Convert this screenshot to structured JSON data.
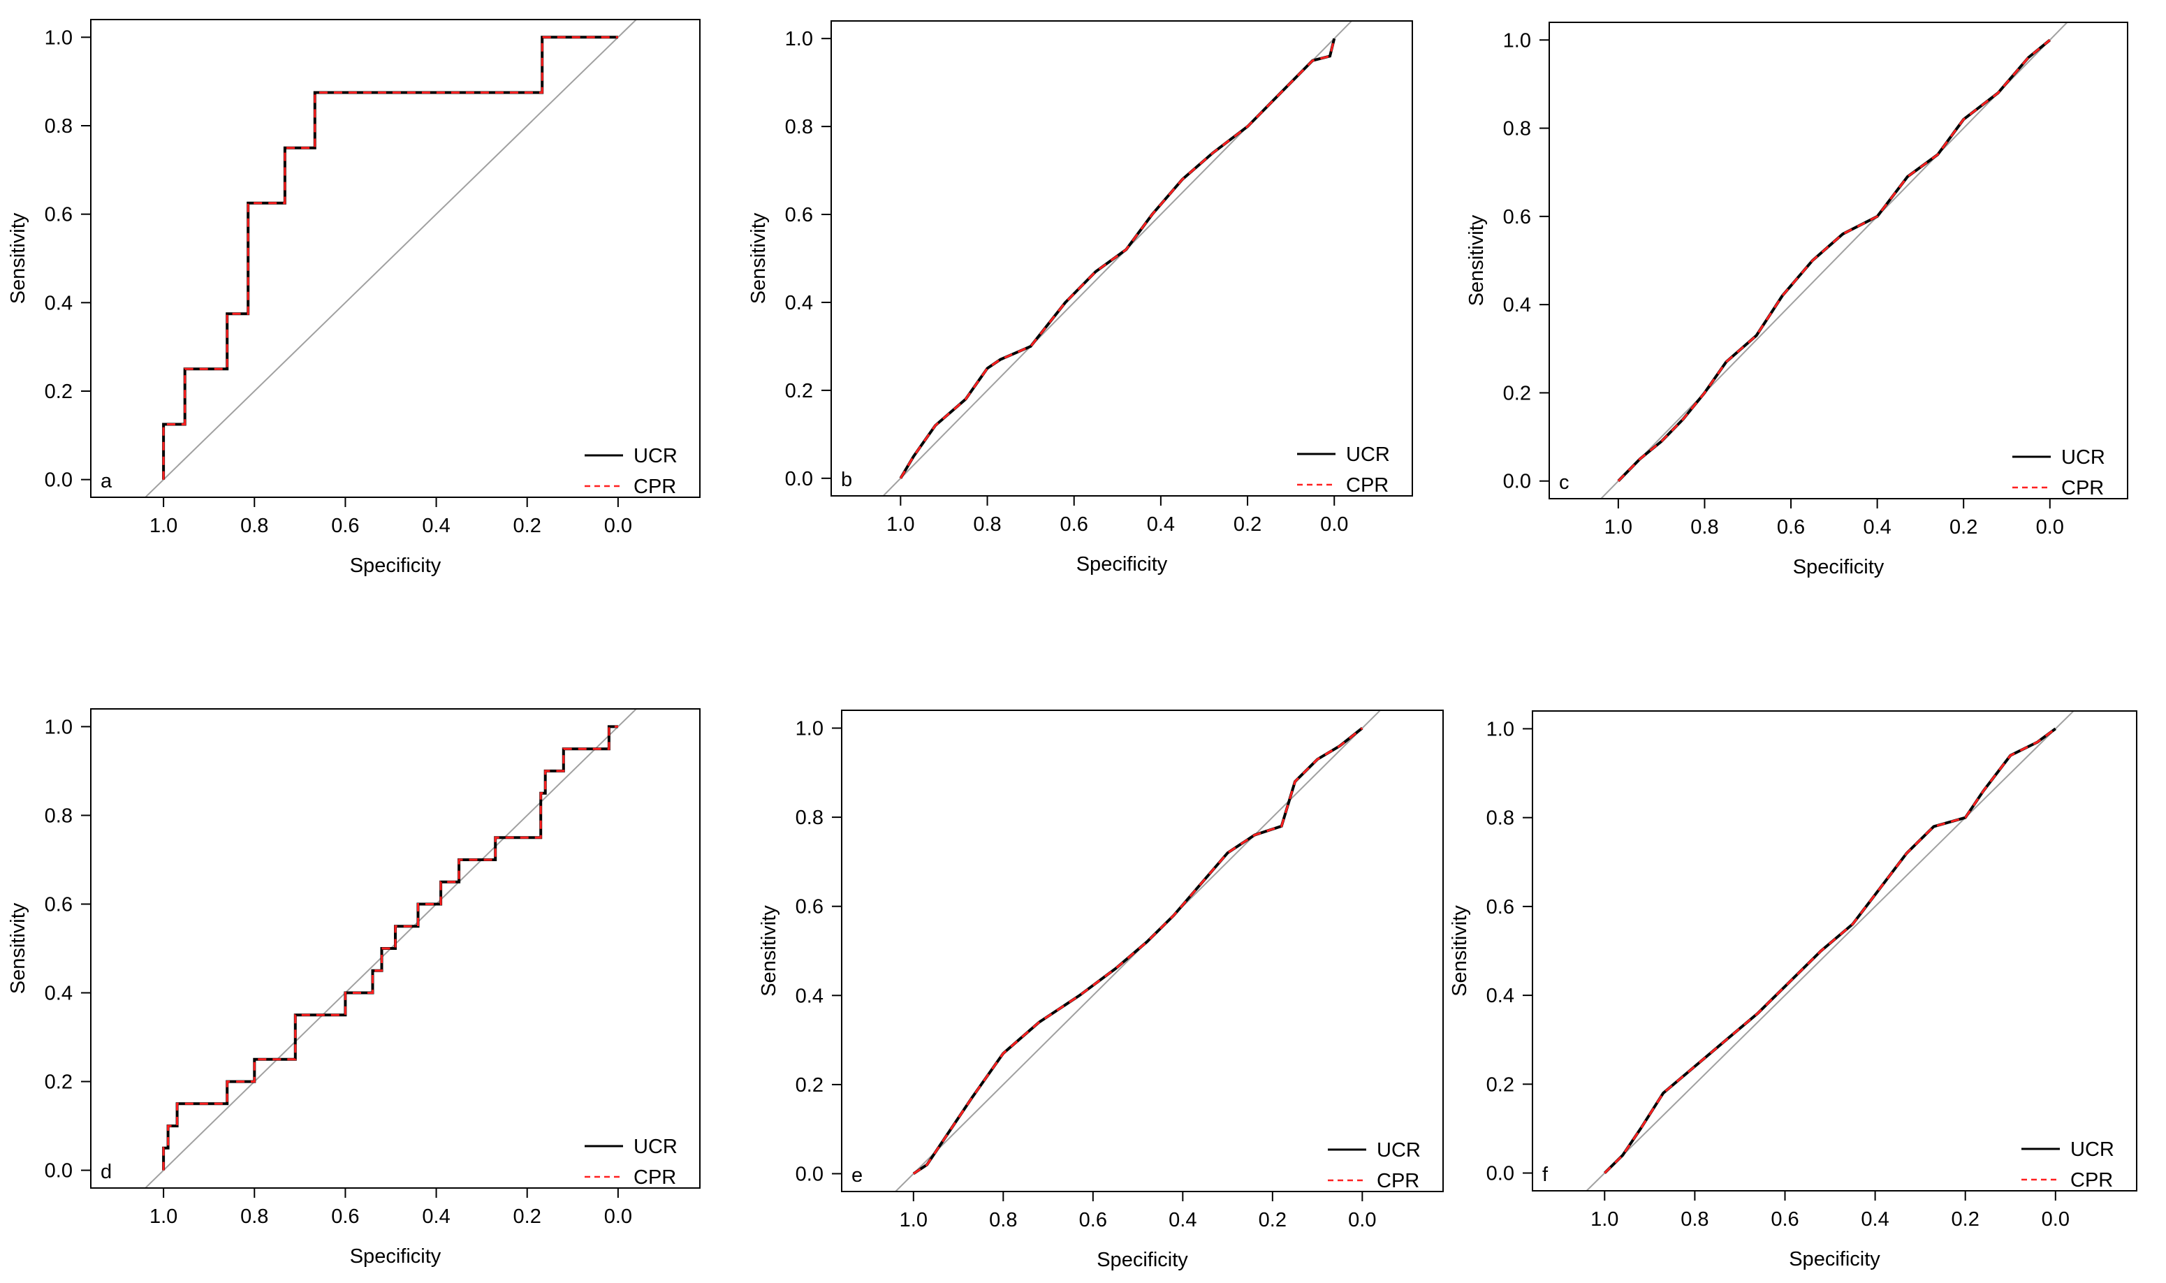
{
  "figure": {
    "description": "Six ROC curve panels (a-f) comparing UCR and CPR"
  },
  "legend": {
    "entries": [
      {
        "label": "UCR",
        "color": "#000000",
        "style": "solid"
      },
      {
        "label": "CPR",
        "color": "#ff2020",
        "style": "dashed"
      }
    ]
  },
  "colors": {
    "ucr": "#000000",
    "cpr": "#ff2020",
    "diagonal": "#a0a0a0",
    "frame": "#000000"
  },
  "chart_data": [
    {
      "panel": "a",
      "type": "line",
      "xlabel": "Specificity",
      "ylabel": "Sensitivity",
      "xlim": [
        1.16,
        -0.18
      ],
      "ylim": [
        -0.04,
        1.04
      ],
      "xticks": [
        "1.0",
        "0.8",
        "0.6",
        "0.4",
        "0.2",
        "0.0"
      ],
      "yticks": [
        "0.0",
        "0.2",
        "0.4",
        "0.6",
        "0.8",
        "1.0"
      ],
      "series": [
        {
          "name": "UCR",
          "specificity": [
            1.0,
            1.0,
            0.953,
            0.953,
            0.86,
            0.86,
            0.814,
            0.814,
            0.733,
            0.733,
            0.667,
            0.667,
            0.167,
            0.167,
            0.0
          ],
          "sensitivity": [
            0.0,
            0.125,
            0.125,
            0.25,
            0.25,
            0.375,
            0.375,
            0.625,
            0.625,
            0.75,
            0.75,
            0.875,
            0.875,
            1.0,
            1.0
          ]
        },
        {
          "name": "CPR",
          "specificity": [
            1.0,
            1.0,
            0.953,
            0.953,
            0.86,
            0.86,
            0.814,
            0.814,
            0.733,
            0.733,
            0.667,
            0.667,
            0.167,
            0.167,
            0.0
          ],
          "sensitivity": [
            0.0,
            0.125,
            0.125,
            0.25,
            0.25,
            0.375,
            0.375,
            0.625,
            0.625,
            0.75,
            0.75,
            0.875,
            0.875,
            1.0,
            1.0
          ]
        }
      ]
    },
    {
      "panel": "b",
      "type": "line",
      "xlabel": "Specificity",
      "ylabel": "Sensitivity",
      "xlim": [
        1.16,
        -0.18
      ],
      "ylim": [
        -0.04,
        1.04
      ],
      "xticks": [
        "1.0",
        "0.8",
        "0.6",
        "0.4",
        "0.2",
        "0.0"
      ],
      "yticks": [
        "0.0",
        "0.2",
        "0.4",
        "0.6",
        "0.8",
        "1.0"
      ],
      "series": [
        {
          "name": "UCR",
          "specificity": [
            1.0,
            0.97,
            0.92,
            0.85,
            0.8,
            0.77,
            0.7,
            0.62,
            0.55,
            0.48,
            0.42,
            0.35,
            0.28,
            0.2,
            0.12,
            0.05,
            0.01,
            0.0
          ],
          "sensitivity": [
            0.0,
            0.05,
            0.12,
            0.18,
            0.25,
            0.27,
            0.3,
            0.4,
            0.47,
            0.52,
            0.6,
            0.68,
            0.74,
            0.8,
            0.88,
            0.95,
            0.96,
            1.0
          ]
        },
        {
          "name": "CPR",
          "specificity": [
            1.0,
            0.97,
            0.92,
            0.85,
            0.8,
            0.77,
            0.7,
            0.62,
            0.55,
            0.48,
            0.42,
            0.35,
            0.28,
            0.2,
            0.12,
            0.05,
            0.01,
            0.0
          ],
          "sensitivity": [
            0.0,
            0.05,
            0.12,
            0.18,
            0.25,
            0.27,
            0.3,
            0.4,
            0.47,
            0.52,
            0.6,
            0.68,
            0.74,
            0.8,
            0.88,
            0.95,
            0.96,
            1.0
          ]
        }
      ]
    },
    {
      "panel": "c",
      "type": "line",
      "xlabel": "Specificity",
      "ylabel": "Sensitivity",
      "xlim": [
        1.16,
        -0.18
      ],
      "ylim": [
        -0.04,
        1.04
      ],
      "xticks": [
        "1.0",
        "0.8",
        "0.6",
        "0.4",
        "0.2",
        "0.0"
      ],
      "yticks": [
        "0.0",
        "0.2",
        "0.4",
        "0.6",
        "0.8",
        "1.0"
      ],
      "series": [
        {
          "name": "UCR",
          "specificity": [
            1.0,
            0.95,
            0.9,
            0.85,
            0.8,
            0.75,
            0.68,
            0.62,
            0.55,
            0.48,
            0.4,
            0.33,
            0.26,
            0.2,
            0.12,
            0.05,
            0.0
          ],
          "sensitivity": [
            0.0,
            0.05,
            0.09,
            0.14,
            0.2,
            0.27,
            0.33,
            0.42,
            0.5,
            0.56,
            0.6,
            0.69,
            0.74,
            0.82,
            0.88,
            0.96,
            1.0
          ]
        },
        {
          "name": "CPR",
          "specificity": [
            1.0,
            0.95,
            0.9,
            0.85,
            0.8,
            0.75,
            0.68,
            0.62,
            0.55,
            0.48,
            0.4,
            0.33,
            0.26,
            0.2,
            0.12,
            0.05,
            0.0
          ],
          "sensitivity": [
            0.0,
            0.05,
            0.09,
            0.14,
            0.2,
            0.27,
            0.33,
            0.42,
            0.5,
            0.56,
            0.6,
            0.69,
            0.74,
            0.82,
            0.88,
            0.96,
            1.0
          ]
        }
      ]
    },
    {
      "panel": "d",
      "type": "line",
      "xlabel": "Specificity",
      "ylabel": "Sensitivity",
      "xlim": [
        1.16,
        -0.18
      ],
      "ylim": [
        -0.04,
        1.04
      ],
      "xticks": [
        "1.0",
        "0.8",
        "0.6",
        "0.4",
        "0.2",
        "0.0"
      ],
      "yticks": [
        "0.0",
        "0.2",
        "0.4",
        "0.6",
        "0.8",
        "1.0"
      ],
      "series": [
        {
          "name": "UCR",
          "specificity": [
            1.0,
            1.0,
            0.99,
            0.99,
            0.97,
            0.97,
            0.86,
            0.86,
            0.8,
            0.8,
            0.71,
            0.71,
            0.6,
            0.6,
            0.54,
            0.54,
            0.52,
            0.52,
            0.49,
            0.49,
            0.44,
            0.44,
            0.39,
            0.39,
            0.35,
            0.35,
            0.27,
            0.27,
            0.17,
            0.17,
            0.16,
            0.16,
            0.12,
            0.12,
            0.02,
            0.02,
            0.0
          ],
          "sensitivity": [
            0.0,
            0.05,
            0.05,
            0.1,
            0.1,
            0.15,
            0.15,
            0.2,
            0.2,
            0.25,
            0.25,
            0.35,
            0.35,
            0.4,
            0.4,
            0.45,
            0.45,
            0.5,
            0.5,
            0.55,
            0.55,
            0.6,
            0.6,
            0.65,
            0.65,
            0.7,
            0.7,
            0.75,
            0.75,
            0.85,
            0.85,
            0.9,
            0.9,
            0.95,
            0.95,
            1.0,
            1.0
          ]
        },
        {
          "name": "CPR",
          "specificity": [
            1.0,
            1.0,
            0.99,
            0.99,
            0.97,
            0.97,
            0.86,
            0.86,
            0.8,
            0.8,
            0.71,
            0.71,
            0.6,
            0.6,
            0.54,
            0.54,
            0.52,
            0.52,
            0.49,
            0.49,
            0.44,
            0.44,
            0.39,
            0.39,
            0.35,
            0.35,
            0.27,
            0.27,
            0.17,
            0.17,
            0.16,
            0.16,
            0.12,
            0.12,
            0.02,
            0.02,
            0.0
          ],
          "sensitivity": [
            0.0,
            0.05,
            0.05,
            0.1,
            0.1,
            0.15,
            0.15,
            0.2,
            0.2,
            0.25,
            0.25,
            0.35,
            0.35,
            0.4,
            0.4,
            0.45,
            0.45,
            0.5,
            0.5,
            0.55,
            0.55,
            0.6,
            0.6,
            0.65,
            0.65,
            0.7,
            0.7,
            0.75,
            0.75,
            0.85,
            0.85,
            0.9,
            0.9,
            0.95,
            0.95,
            1.0,
            1.0
          ]
        }
      ]
    },
    {
      "panel": "e",
      "type": "line",
      "xlabel": "Specificity",
      "ylabel": "Sensitivity",
      "xlim": [
        1.16,
        -0.18
      ],
      "ylim": [
        -0.04,
        1.04
      ],
      "xticks": [
        "1.0",
        "0.8",
        "0.6",
        "0.4",
        "0.2",
        "0.0"
      ],
      "yticks": [
        "0.0",
        "0.2",
        "0.4",
        "0.6",
        "0.8",
        "1.0"
      ],
      "series": [
        {
          "name": "UCR",
          "specificity": [
            1.0,
            0.97,
            0.93,
            0.87,
            0.8,
            0.72,
            0.63,
            0.55,
            0.48,
            0.42,
            0.36,
            0.3,
            0.24,
            0.18,
            0.15,
            0.1,
            0.05,
            0.0
          ],
          "sensitivity": [
            0.0,
            0.02,
            0.08,
            0.17,
            0.27,
            0.34,
            0.4,
            0.46,
            0.52,
            0.58,
            0.65,
            0.72,
            0.76,
            0.78,
            0.88,
            0.93,
            0.96,
            1.0
          ]
        },
        {
          "name": "CPR",
          "specificity": [
            1.0,
            0.97,
            0.93,
            0.87,
            0.8,
            0.72,
            0.63,
            0.55,
            0.48,
            0.42,
            0.36,
            0.3,
            0.24,
            0.18,
            0.15,
            0.1,
            0.05,
            0.0
          ],
          "sensitivity": [
            0.0,
            0.02,
            0.08,
            0.17,
            0.27,
            0.34,
            0.4,
            0.46,
            0.52,
            0.58,
            0.65,
            0.72,
            0.76,
            0.78,
            0.88,
            0.93,
            0.96,
            1.0
          ]
        }
      ]
    },
    {
      "panel": "f",
      "type": "line",
      "xlabel": "Specificity",
      "ylabel": "Sensitivity",
      "xlim": [
        1.16,
        -0.18
      ],
      "ylim": [
        -0.04,
        1.04
      ],
      "xticks": [
        "1.0",
        "0.8",
        "0.6",
        "0.4",
        "0.2",
        "0.0"
      ],
      "yticks": [
        "0.0",
        "0.2",
        "0.4",
        "0.6",
        "0.8",
        "1.0"
      ],
      "series": [
        {
          "name": "UCR",
          "specificity": [
            1.0,
            0.96,
            0.92,
            0.87,
            0.8,
            0.73,
            0.66,
            0.6,
            0.52,
            0.45,
            0.39,
            0.33,
            0.27,
            0.2,
            0.16,
            0.1,
            0.04,
            0.0
          ],
          "sensitivity": [
            0.0,
            0.04,
            0.1,
            0.18,
            0.24,
            0.3,
            0.36,
            0.42,
            0.5,
            0.56,
            0.64,
            0.72,
            0.78,
            0.8,
            0.86,
            0.94,
            0.97,
            1.0
          ]
        },
        {
          "name": "CPR",
          "specificity": [
            1.0,
            0.96,
            0.92,
            0.87,
            0.8,
            0.73,
            0.66,
            0.6,
            0.52,
            0.45,
            0.39,
            0.33,
            0.27,
            0.2,
            0.16,
            0.1,
            0.04,
            0.0
          ],
          "sensitivity": [
            0.0,
            0.04,
            0.1,
            0.18,
            0.24,
            0.3,
            0.36,
            0.42,
            0.5,
            0.56,
            0.64,
            0.72,
            0.78,
            0.8,
            0.86,
            0.94,
            0.97,
            1.0
          ]
        }
      ]
    }
  ]
}
